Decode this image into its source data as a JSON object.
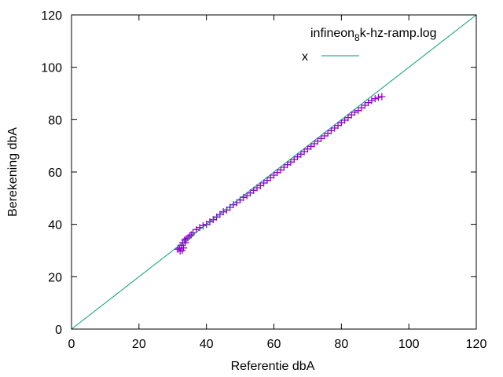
{
  "chart_data": {
    "type": "scatter",
    "title": "",
    "xlabel": "Referentie dbA",
    "ylabel": "Berekening dbA",
    "xlim": [
      0,
      120
    ],
    "ylim": [
      0,
      120
    ],
    "x_ticks": [
      0,
      20,
      40,
      60,
      80,
      100,
      120
    ],
    "y_ticks": [
      0,
      20,
      40,
      60,
      80,
      100,
      120
    ],
    "grid": false,
    "legend_position": "top-right",
    "series": [
      {
        "name": "infineon 8k-hz-ramp.log",
        "name_parts": [
          "infineon",
          "8",
          "k-hz-ramp.log"
        ],
        "type": "scatter",
        "marker": "+",
        "color": "#9400d3",
        "x": [
          31.5,
          32.0,
          32.2,
          32.5,
          32.8,
          33.0,
          33.2,
          33.5,
          33.8,
          34.0,
          34.5,
          35.0,
          35.5,
          36.0,
          37.0,
          38.0,
          39.0,
          40.0,
          41.0,
          42.0,
          43.0,
          44.0,
          45.0,
          46.0,
          47.0,
          48.0,
          49.0,
          50.0,
          51.0,
          52.0,
          53.0,
          54.0,
          55.0,
          56.0,
          57.0,
          58.0,
          59.0,
          60.0,
          61.0,
          62.0,
          63.0,
          64.0,
          65.0,
          66.0,
          67.0,
          68.0,
          69.0,
          70.0,
          71.0,
          72.0,
          73.0,
          74.0,
          75.0,
          76.0,
          77.0,
          78.0,
          79.0,
          80.0,
          81.0,
          82.0,
          83.0,
          84.0,
          85.0,
          86.0,
          87.0,
          88.0,
          89.0,
          90.0,
          91.0,
          92.0
        ],
        "y": [
          30.5,
          31.0,
          29.8,
          32.0,
          30.0,
          33.0,
          31.0,
          34.0,
          33.0,
          34.5,
          34.8,
          35.5,
          36.0,
          36.8,
          38.0,
          38.8,
          39.5,
          40.0,
          41.0,
          41.8,
          42.8,
          43.8,
          44.8,
          45.5,
          46.5,
          47.5,
          48.3,
          49.3,
          50.3,
          51.0,
          52.0,
          53.0,
          54.0,
          54.8,
          55.8,
          56.8,
          57.8,
          58.8,
          59.8,
          60.8,
          61.8,
          62.8,
          63.8,
          64.8,
          65.8,
          66.8,
          67.8,
          68.8,
          69.8,
          70.8,
          71.8,
          72.8,
          73.8,
          74.8,
          75.8,
          76.8,
          77.8,
          78.8,
          79.8,
          80.8,
          81.8,
          82.8,
          83.5,
          84.5,
          85.5,
          86.5,
          87.3,
          88.0,
          88.5,
          88.8
        ]
      },
      {
        "name": "x",
        "type": "line",
        "color": "#009e73",
        "x": [
          0,
          120
        ],
        "y": [
          0,
          120
        ]
      }
    ]
  }
}
